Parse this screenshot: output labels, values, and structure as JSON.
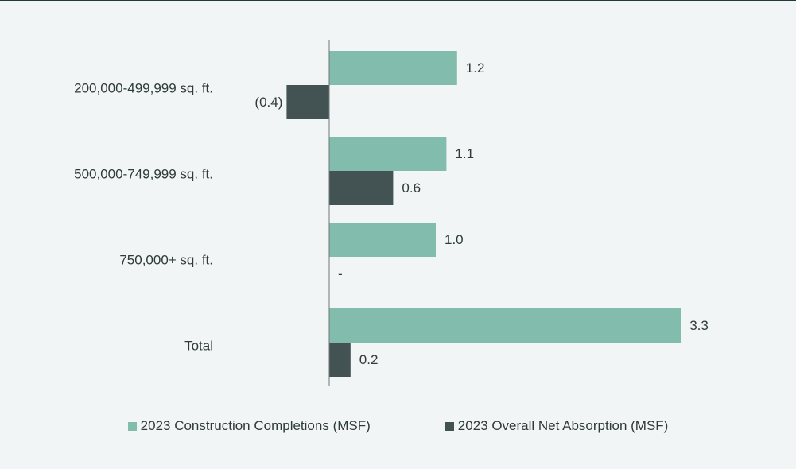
{
  "chart_data": {
    "type": "bar",
    "orientation": "horizontal",
    "categories": [
      "200,000-499,999 sq. ft.",
      "500,000-749,999 sq. ft.",
      "750,000+ sq. ft.",
      "Total"
    ],
    "series": [
      {
        "name": "2023 Construction Completions (MSF)",
        "color": "#82bcad",
        "values": [
          1.2,
          1.1,
          1.0,
          3.3
        ],
        "labels": [
          "1.2",
          "1.1",
          "1.0",
          "3.3"
        ]
      },
      {
        "name": "2023 Overall Net Absorption (MSF)",
        "color": "#435252",
        "values": [
          -0.4,
          0.6,
          0,
          0.2
        ],
        "labels": [
          "(0.4)",
          "0.6",
          "-",
          "0.2"
        ]
      }
    ],
    "title": "",
    "xlabel": "",
    "ylabel": "",
    "xlim": [
      -0.4,
      3.3
    ],
    "grid": false,
    "legend": "bottom"
  }
}
